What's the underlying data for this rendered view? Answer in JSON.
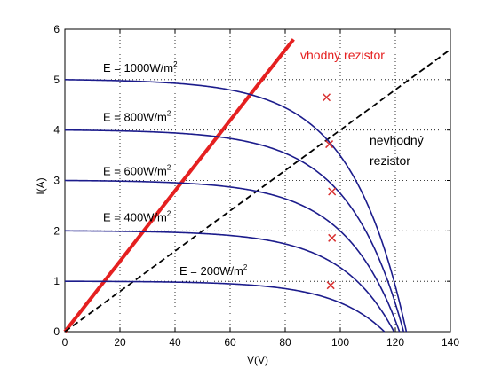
{
  "chart_data": {
    "type": "line",
    "title": "",
    "xlabel": "V(V)",
    "ylabel": "I(A)",
    "xlim": [
      0,
      140
    ],
    "ylim": [
      0,
      6
    ],
    "xticks": [
      "0",
      "20",
      "40",
      "60",
      "80",
      "100",
      "120",
      "140"
    ],
    "yticks": [
      "0",
      "1",
      "2",
      "3",
      "4",
      "5",
      "6"
    ],
    "grid": true,
    "series": [
      {
        "label_prefix": "E = 1000W/m",
        "label_sup": "2",
        "isc": 5.0,
        "voc": 124
      },
      {
        "label_prefix": "E = 800W/m",
        "label_sup": "2",
        "isc": 4.0,
        "voc": 123
      },
      {
        "label_prefix": "E = 600W/m",
        "label_sup": "2",
        "isc": 3.0,
        "voc": 121.5
      },
      {
        "label_prefix": "E = 400W/m",
        "label_sup": "2",
        "isc": 2.0,
        "voc": 119.5
      },
      {
        "label_prefix": "E = 200W/m",
        "label_sup": "2",
        "isc": 1.0,
        "voc": 116
      }
    ],
    "mpp_markers": [
      {
        "x": 95,
        "y": 4.65
      },
      {
        "x": 96,
        "y": 3.72
      },
      {
        "x": 97,
        "y": 2.78
      },
      {
        "x": 97,
        "y": 1.86
      },
      {
        "x": 96.5,
        "y": 0.92
      }
    ],
    "lines": [
      {
        "label": "vhodný rezistor",
        "color": "#e52020",
        "from": [
          0,
          0
        ],
        "to": [
          83,
          5.8
        ],
        "dash": false
      },
      {
        "label_line1": "nevhodný",
        "label_line2": "rezistor",
        "color": "#000000",
        "from": [
          0,
          0
        ],
        "to": [
          140,
          5.6
        ],
        "dash": true
      }
    ],
    "colors": {
      "curves": "#1c1c8c",
      "marker": "#d83030",
      "grid": "#bbbbbb"
    }
  }
}
